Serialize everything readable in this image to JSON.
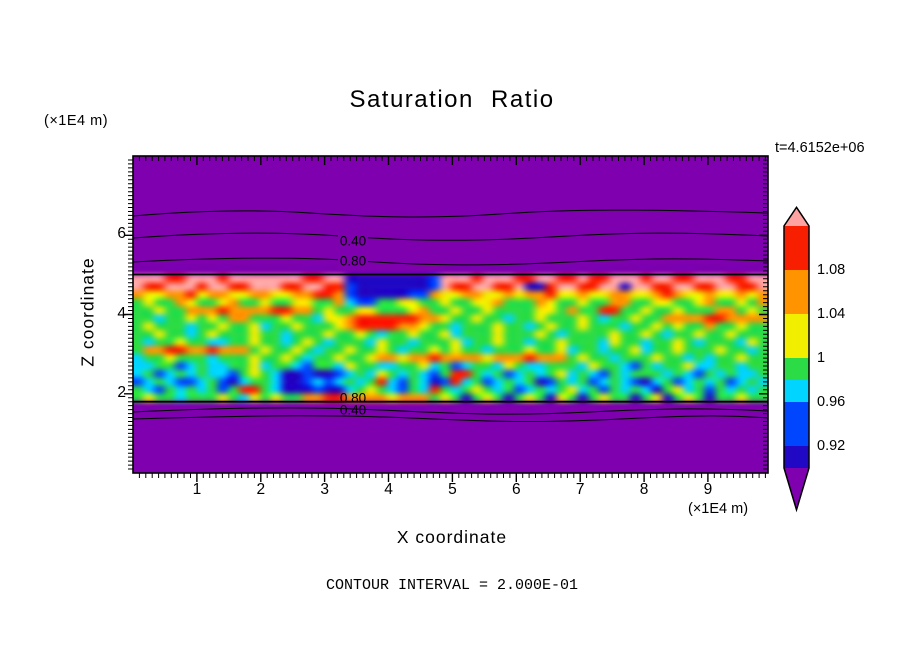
{
  "title": "Saturation Ratio",
  "timestamp": "t=4.6152e+06",
  "contour_interval_label": "CONTOUR INTERVAL = 2.000E-01",
  "axes": {
    "x": {
      "label": "X coordinate",
      "unit": "(×1E4 m)",
      "min": 0,
      "max": 9.94,
      "major_ticks": [
        1,
        2,
        3,
        4,
        5,
        6,
        7,
        8,
        9
      ],
      "minor_step": 0.1
    },
    "z": {
      "label": "Z coordinate",
      "unit": "(×1E4 m)",
      "min": 0,
      "max": 8,
      "major_ticks": [
        2,
        4,
        6
      ],
      "minor_step": 0.1
    }
  },
  "contour_labels": {
    "top_outer": "0.40",
    "top_inner": "0.80",
    "bottom_inner": "0.80",
    "bottom_outer": "0.40"
  },
  "colorbar": {
    "ticks": [
      {
        "label": "1.08",
        "value": 1.08
      },
      {
        "label": "1.04",
        "value": 1.04
      },
      {
        "label": "1",
        "value": 1.0
      },
      {
        "label": "0.96",
        "value": 0.96
      },
      {
        "label": "0.92",
        "value": 0.92
      }
    ],
    "segments": [
      {
        "name": "pink",
        "color": "#ffa2a2",
        "from": 1.12,
        "to": 1.137,
        "shape": "triangle-up"
      },
      {
        "name": "red",
        "color": "#f81e00",
        "from": 1.08,
        "to": 1.12
      },
      {
        "name": "orange",
        "color": "#ff9400",
        "from": 1.04,
        "to": 1.08
      },
      {
        "name": "yellow",
        "color": "#f2ee00",
        "from": 1.0,
        "to": 1.04
      },
      {
        "name": "green",
        "color": "#2cdc46",
        "from": 0.98,
        "to": 1.0
      },
      {
        "name": "cyan",
        "color": "#00d4ff",
        "from": 0.96,
        "to": 0.98
      },
      {
        "name": "blue",
        "color": "#0046ff",
        "from": 0.92,
        "to": 0.96
      },
      {
        "name": "navy",
        "color": "#2008c4",
        "from": 0.9,
        "to": 0.92
      },
      {
        "name": "purple",
        "color": "#7e00ae",
        "from": 0.862,
        "to": 0.9,
        "shape": "triangle-down"
      }
    ]
  },
  "chart_data": {
    "type": "heatmap",
    "title": "Saturation Ratio",
    "x_range": [
      0,
      9.94
    ],
    "z_range": [
      0,
      8
    ],
    "contour_interval": 0.2,
    "time": "t=4.6152e+06",
    "palette": {
      "P": "#7e00ae",
      "N": "#2008c4",
      "B": "#0046ff",
      "C": "#00d4ff",
      "G": "#2cdc46",
      "Y": "#f2ee00",
      "O": "#ff9400",
      "R": "#f81e00",
      "K": "#ffa2a2"
    },
    "palette_value_ranges": {
      "P": "<0.90",
      "N": "0.90-0.92",
      "B": "0.92-0.96",
      "C": "0.96-0.98",
      "G": "0.98-1.00",
      "Y": "1.00-1.04",
      "O": "1.04-1.08",
      "R": "1.08-1.12",
      "K": ">1.12"
    },
    "grid_cols": 60,
    "rows_above_band": 15,
    "rows_below_band": 9,
    "band_z_top": 5.0,
    "band_z_bottom": 1.8,
    "band_rows": [
      "KKKRRKKKRKKKKKKKRRKKNNNNNNNNBKKKRKKKRRKKRRKRRKKKRKKRRKKKRRKK",
      "KRRKKKRKKRRKKKRRKKRRBNNNNNNNBKRRKKRRKNNRKKRRKKNKKRRKKRRKKRRK",
      "OYYOORYOOYYOOYYOORROBNNNNNBBOYYOOYYOYOORYYOYYOOYYOROYYOYYOYO",
      "GYGGOYGGYOGGYGGYYGGOCBBGGYYGGYGGYYOGGGOYGGYGGOOGGYYGGYOGGYGO",
      "GGYGGOOOROOOORROOGYGGYYGGGYOGGYGGYGGGGYYGOGGRRGGYGGYGGGOOGYG",
      "GGCGGYGYGOOGGGYGGCYYORRRRRROOYGGYGGCGGYGGGYGCGGYGGOOOORROOOO",
      "GYGGGCGGYGGYCGGYGGGYORRRROOYGGCGGGYGGCGYGGYGGGCGGYGYGGOGGYGG",
      "GGYGGCGYGGGYGGCGGGYGGYGCGGYGGYCGGGYGGGYGCGGGGYGGYGCGGYGGYGGG",
      "GCGGYGGCCGGYGGCGYGCGGGCYGGCGGGYCGGYGGCGGYGGGCYGGCGGYGCGGGCYG",
      "GOORROOROOOGYGGYGCGGYGGYGCGGYGYGGCGGGYGGYCGGCGGYCGGYGGGYGGCG",
      "CGGYGGGCGGGYGGYGCGGYGGYOOYOOROOOOYOOOROOOGYGGCGGGYGGCGCGGYGG",
      "CCGGBCGCCGGYCGGCBGGCYGGCCGGYCGBCGGCYGCCGGGCYGGCBGCGGYCCGGCGG",
      "CGBCGCGCCBGYGCNNBNNBCGCYGCGCBGRRGCGBCGCGYCGCBGCGGGCGCBGCGCCG",
      "BCGCBBCGBNCGGCNNBCBCGCGRCBGCNBRCGBCGCGNBGCGBCGCBNCGBCGCGBCGC",
      "GCBGCGCGBGRRGCNNNBNNCGYGCBGCRGCGYGCGBCGCGYCGBGCGCNGYCGBGCGCG",
      "GYGGCGGGYGCYGYGGOORROOOOYOOOGYGNGYGNGYGNYGNGYGGNGYNGYGNGGYGG"
    ]
  }
}
